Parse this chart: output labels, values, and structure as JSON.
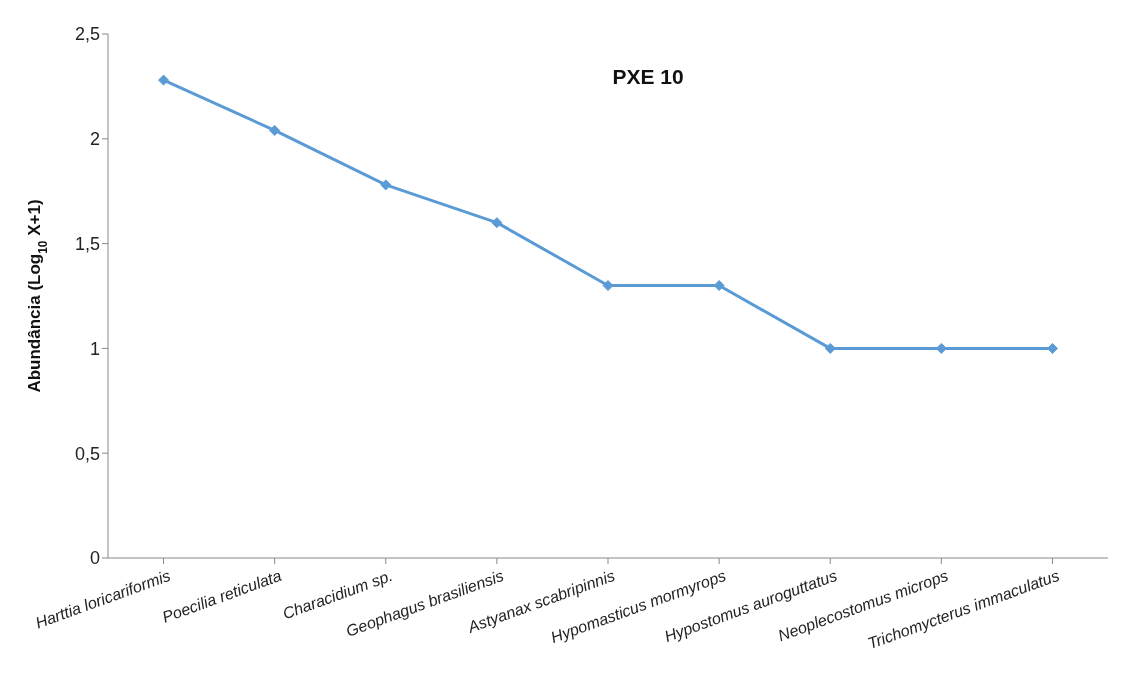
{
  "chart_data": {
    "type": "line",
    "title": "PXE 10",
    "ylabel": "Abundância (Log$_{10}$ X+1)",
    "categories": [
      "Harttia loricariformis",
      "Poecilia reticulata",
      "Characidium sp.",
      "Geophagus brasiliensis",
      "Astyanax scabripinnis",
      "Hypomasticus mormyrops",
      "Hypostomus auroguttatus",
      "Neoplecostomus microps",
      "Trichomycterus immaculatus"
    ],
    "series": [
      {
        "color": "#5b9bd5",
        "values": [
          2.28,
          2.04,
          1.78,
          1.6,
          1.3,
          1.3,
          1.0,
          1.0,
          1.0
        ]
      }
    ],
    "ylim": [
      0,
      2.5
    ],
    "yticks": [
      0,
      {
        "value": 0.5,
        "label": "0,5"
      },
      1,
      {
        "value": 1.5,
        "label": "1,5"
      },
      2,
      {
        "value": 2.5,
        "label": "2,5"
      }
    ],
    "grid": false,
    "legend": false,
    "marker": "diamond",
    "line_style": "solid"
  }
}
